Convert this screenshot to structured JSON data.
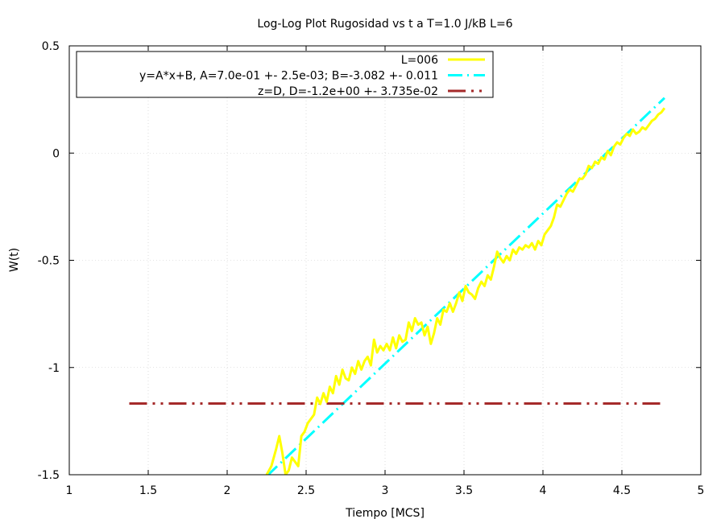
{
  "chart_data": {
    "type": "line",
    "title": "Log-Log Plot Rugosidad vs t a T=1.0 J/kB L=6",
    "xlabel": "Tiempo [MCS]",
    "ylabel": "W(t)",
    "xlim": [
      1,
      5
    ],
    "ylim": [
      -1.5,
      0.5
    ],
    "xticks": [
      1,
      1.5,
      2,
      2.5,
      3,
      3.5,
      4,
      4.5,
      5
    ],
    "xtick_labels": [
      "1",
      "1.5",
      "2",
      "2.5",
      "3",
      "3.5",
      "4",
      "4.5",
      "5"
    ],
    "yticks": [
      -1.5,
      -1,
      -0.5,
      0,
      0.5
    ],
    "ytick_labels": [
      "-1.5",
      "-1",
      "-0.5",
      "0",
      "0.5"
    ],
    "grid": true,
    "legend_position": "top-left",
    "series": [
      {
        "name": "L=006",
        "color": "#ffff00",
        "style": "solid",
        "x": [
          2.25,
          2.28,
          2.31,
          2.33,
          2.35,
          2.37,
          2.39,
          2.41,
          2.43,
          2.45,
          2.47,
          2.49,
          2.51,
          2.53,
          2.55,
          2.57,
          2.59,
          2.61,
          2.63,
          2.65,
          2.67,
          2.69,
          2.71,
          2.73,
          2.75,
          2.77,
          2.79,
          2.81,
          2.83,
          2.85,
          2.87,
          2.89,
          2.91,
          2.93,
          2.95,
          2.97,
          2.99,
          3.01,
          3.03,
          3.05,
          3.07,
          3.09,
          3.11,
          3.13,
          3.15,
          3.17,
          3.19,
          3.21,
          3.23,
          3.25,
          3.27,
          3.29,
          3.31,
          3.33,
          3.35,
          3.37,
          3.39,
          3.41,
          3.43,
          3.45,
          3.47,
          3.49,
          3.51,
          3.53,
          3.55,
          3.57,
          3.59,
          3.61,
          3.63,
          3.65,
          3.67,
          3.69,
          3.71,
          3.73,
          3.75,
          3.77,
          3.79,
          3.81,
          3.83,
          3.85,
          3.87,
          3.89,
          3.91,
          3.93,
          3.95,
          3.97,
          3.99,
          4.01,
          4.03,
          4.05,
          4.07,
          4.09,
          4.11,
          4.13,
          4.15,
          4.17,
          4.19,
          4.21,
          4.23,
          4.25,
          4.27,
          4.29,
          4.31,
          4.33,
          4.35,
          4.37,
          4.39,
          4.41,
          4.43,
          4.45,
          4.47,
          4.49,
          4.51,
          4.53,
          4.55,
          4.57,
          4.59,
          4.61,
          4.63,
          4.65,
          4.67,
          4.69,
          4.71,
          4.73,
          4.75,
          4.77
        ],
        "y": [
          -1.5,
          -1.46,
          -1.38,
          -1.32,
          -1.4,
          -1.5,
          -1.48,
          -1.42,
          -1.44,
          -1.46,
          -1.32,
          -1.3,
          -1.26,
          -1.24,
          -1.22,
          -1.14,
          -1.17,
          -1.12,
          -1.16,
          -1.09,
          -1.12,
          -1.04,
          -1.08,
          -1.01,
          -1.05,
          -1.06,
          -1.0,
          -1.03,
          -0.97,
          -1.01,
          -0.97,
          -0.95,
          -0.99,
          -0.87,
          -0.93,
          -0.9,
          -0.92,
          -0.89,
          -0.92,
          -0.86,
          -0.91,
          -0.85,
          -0.88,
          -0.87,
          -0.79,
          -0.83,
          -0.77,
          -0.8,
          -0.79,
          -0.85,
          -0.81,
          -0.89,
          -0.84,
          -0.77,
          -0.8,
          -0.73,
          -0.74,
          -0.7,
          -0.74,
          -0.7,
          -0.65,
          -0.69,
          -0.62,
          -0.65,
          -0.66,
          -0.68,
          -0.63,
          -0.6,
          -0.62,
          -0.57,
          -0.59,
          -0.53,
          -0.46,
          -0.49,
          -0.51,
          -0.48,
          -0.5,
          -0.45,
          -0.47,
          -0.44,
          -0.45,
          -0.43,
          -0.44,
          -0.42,
          -0.45,
          -0.41,
          -0.43,
          -0.38,
          -0.36,
          -0.34,
          -0.3,
          -0.24,
          -0.25,
          -0.22,
          -0.19,
          -0.17,
          -0.18,
          -0.15,
          -0.12,
          -0.12,
          -0.1,
          -0.06,
          -0.07,
          -0.04,
          -0.05,
          -0.02,
          -0.03,
          0.01,
          -0.01,
          0.03,
          0.05,
          0.04,
          0.07,
          0.09,
          0.08,
          0.11,
          0.09,
          0.1,
          0.12,
          0.11,
          0.13,
          0.15,
          0.16,
          0.18,
          0.19,
          0.21
        ]
      },
      {
        "name": "y=A*x+B, A=7.0e-01 +- 2.5e-03; B=-3.082 +- 0.011",
        "color": "#00ffff",
        "style": "dash-dot",
        "fit": {
          "A": 0.7,
          "B": -3.082
        },
        "x": [
          2.25,
          4.77
        ]
      },
      {
        "name": "z=D, D=-1.2e+00 +- 3.735e-02",
        "color": "#a52a2a",
        "style": "dash-dot-dot",
        "fit": {
          "D": -1.168
        },
        "x": [
          1.38,
          4.75
        ]
      }
    ]
  }
}
